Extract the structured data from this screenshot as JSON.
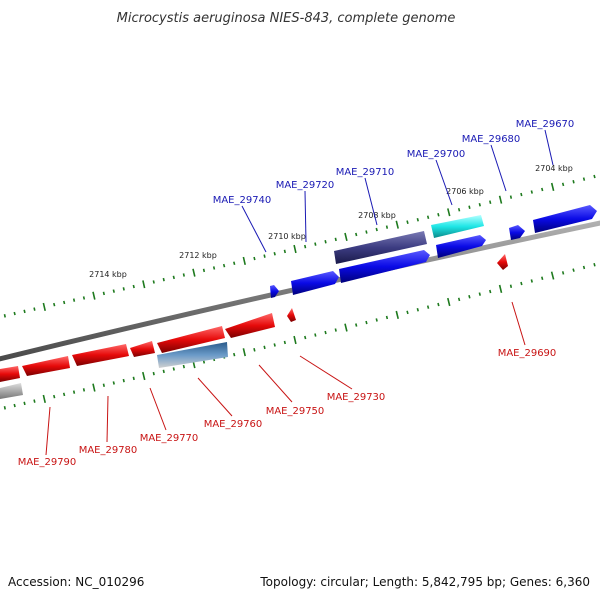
{
  "title": "Microcystis aeruginosa NIES-843, complete genome",
  "footer": {
    "accession": "Accession: NC_010296",
    "info": "Topology: circular; Length: 5,842,795 bp; Genes: 6,360"
  },
  "kbp_labels": [
    "2704 kbp",
    "2706 kbp",
    "2708 kbp",
    "2710 kbp",
    "2712 kbp",
    "2714 kbp"
  ],
  "forward_genes": [
    "MAE_29670",
    "MAE_29680",
    "MAE_29700",
    "MAE_29710",
    "MAE_29720",
    "MAE_29740"
  ],
  "reverse_genes": [
    "MAE_29690",
    "MAE_29730",
    "MAE_29750",
    "MAE_29760",
    "MAE_29770",
    "MAE_29780",
    "MAE_29790"
  ],
  "colors": {
    "forward": "#0a0ae6",
    "reverse": "#e60a0a",
    "navy": "#3c3c82",
    "cyan": "#1ee6e6",
    "steel": "#4682b4",
    "gray": "#aaaaaa",
    "label_forward": "#1a1ab4",
    "label_reverse": "#c81414",
    "tick": "#1e7a1e",
    "backbone": "#7a7a7a"
  }
}
